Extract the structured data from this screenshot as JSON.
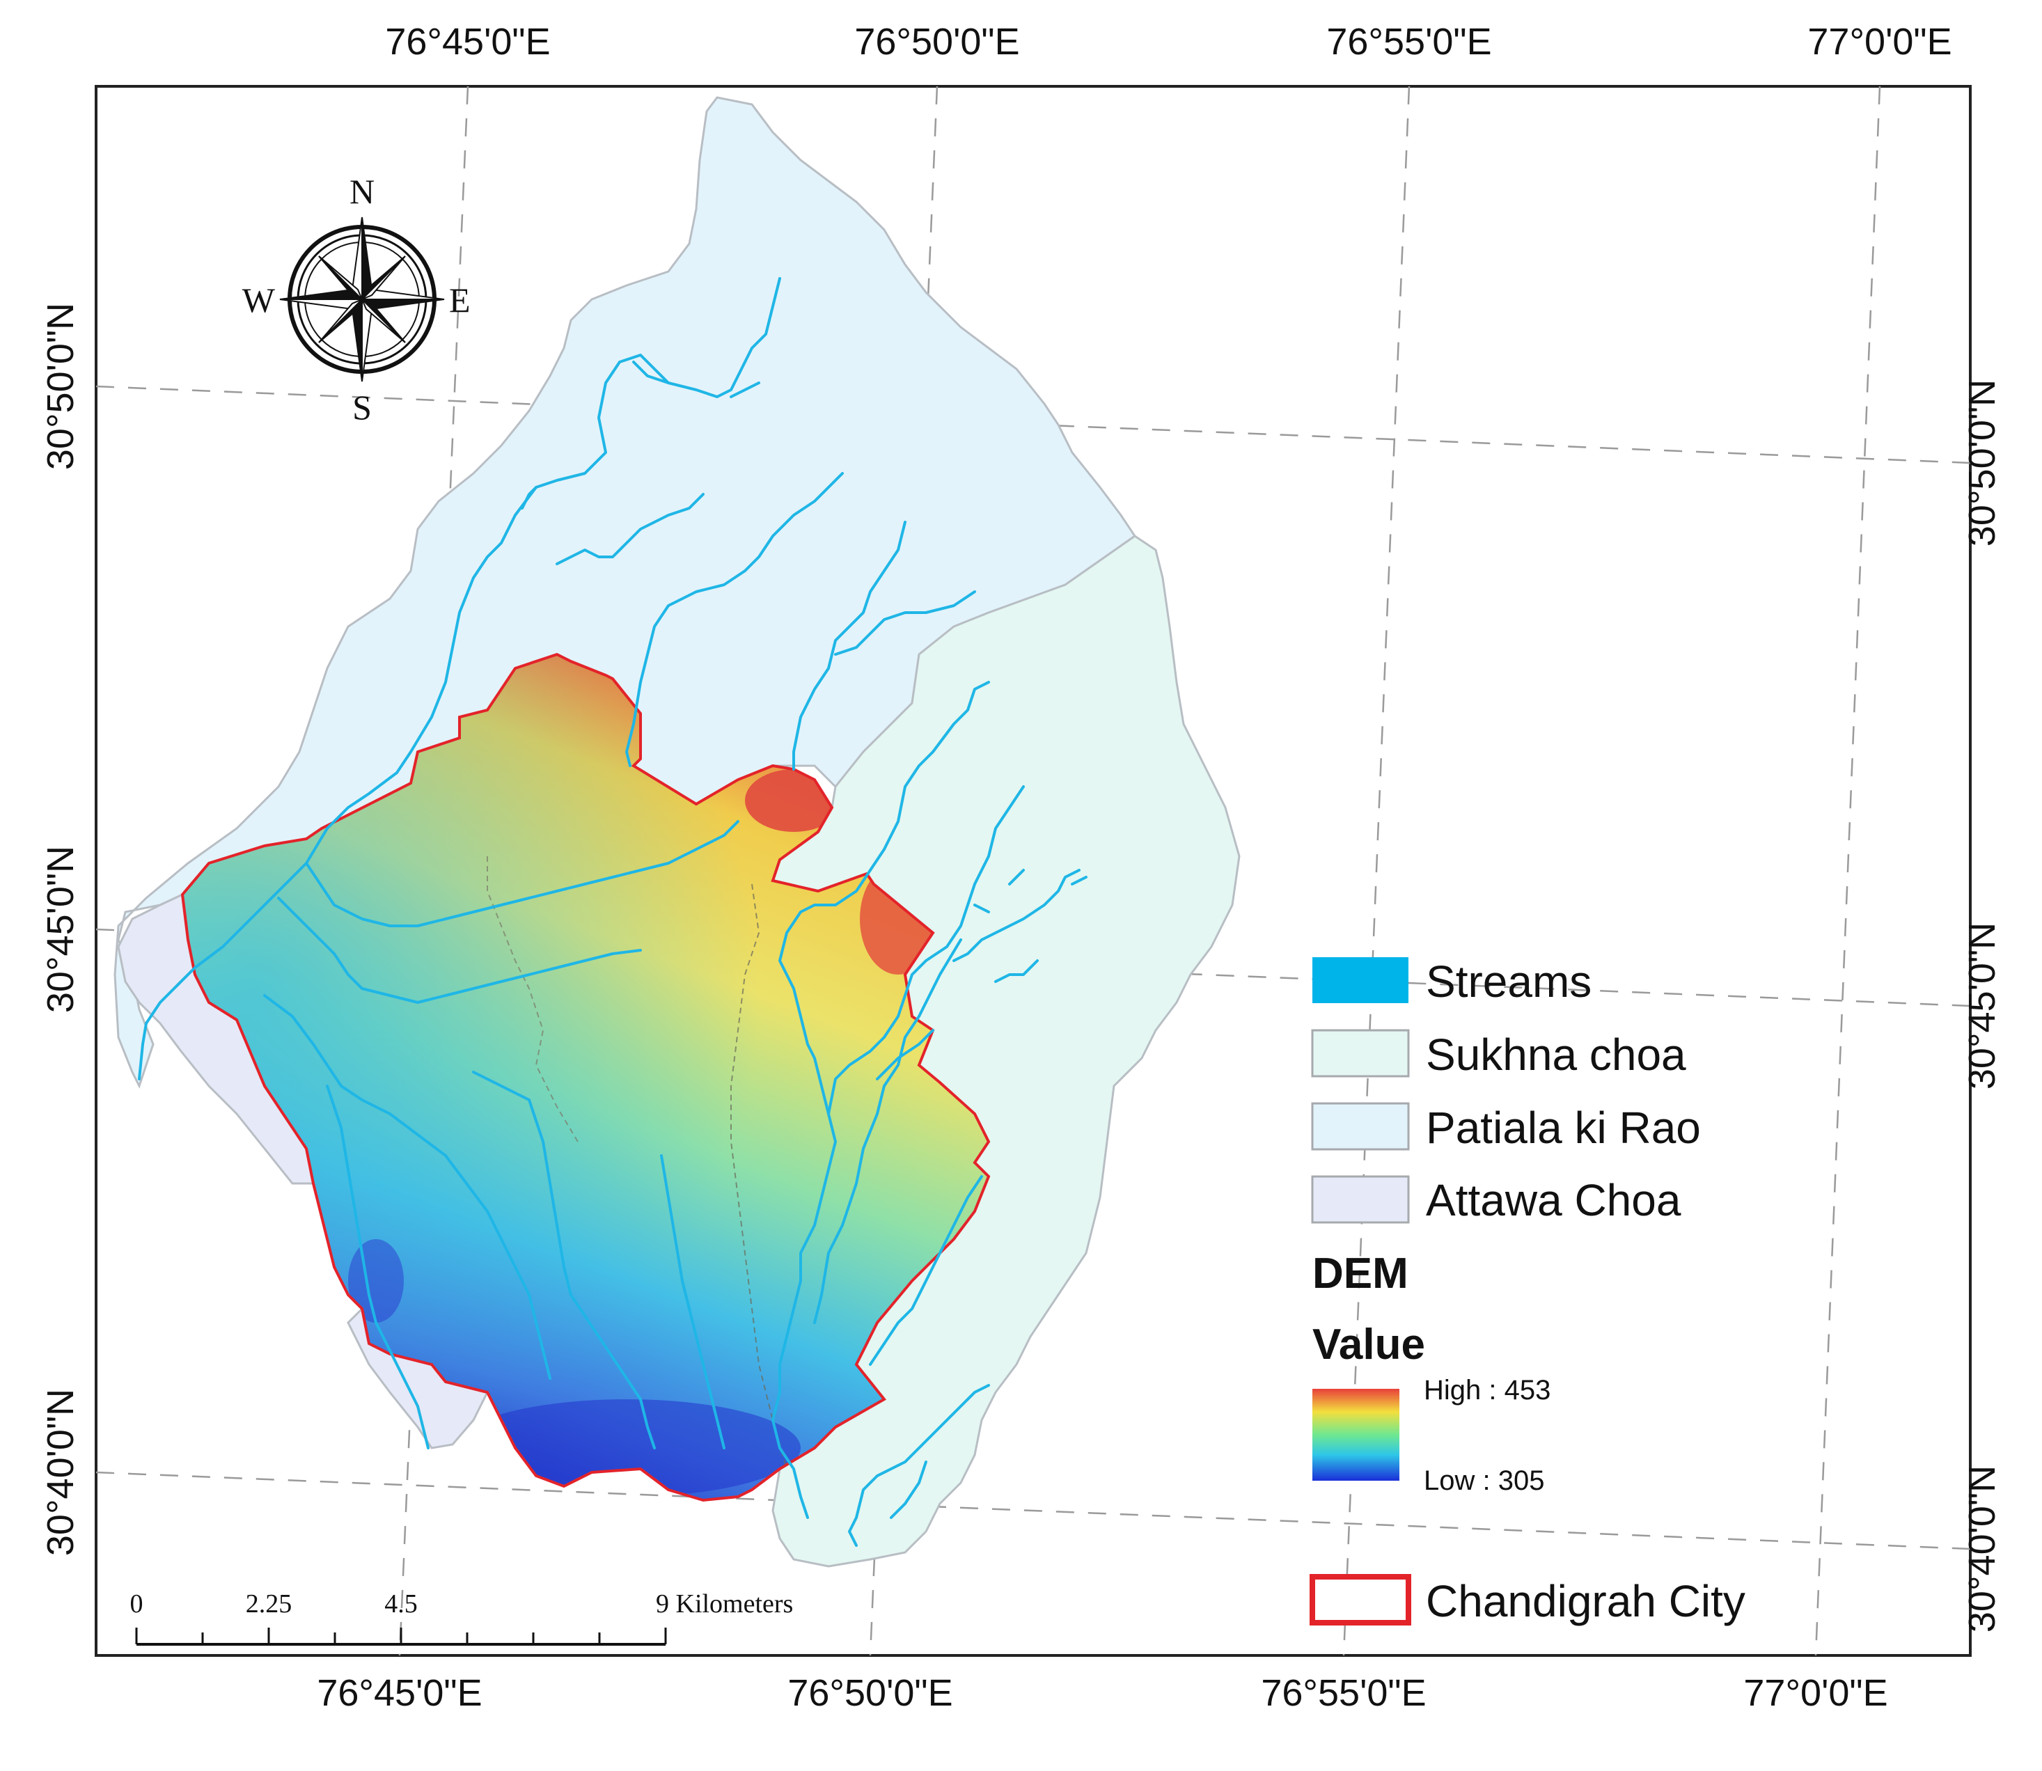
{
  "map": {
    "axes": {
      "top": [
        "76°45'0\"E",
        "76°50'0\"E",
        "76°55'0\"E",
        "77°0'0\"E"
      ],
      "bottom": [
        "76°45'0\"E",
        "76°50'0\"E",
        "76°55'0\"E",
        "77°0'0\"E"
      ],
      "left": [
        "30°50'0\"N",
        "30°45'0\"N",
        "30°40'0\"N"
      ],
      "right": [
        "30°50'0\"N",
        "30°45'0\"N",
        "30°40'0\"N"
      ]
    },
    "compass": {
      "n": "N",
      "s": "S",
      "e": "E",
      "w": "W"
    },
    "scale_bar": {
      "labels": [
        "0",
        "2.25",
        "4.5",
        "9 Kilometers"
      ]
    },
    "legend": {
      "items": [
        {
          "label": "Streams",
          "color": "#00b4ea"
        },
        {
          "label": "Sukhna choa",
          "color": "#e4f7f2"
        },
        {
          "label": "Patiala ki Rao",
          "color": "#e3f3fb"
        },
        {
          "label": "Attawa Choa",
          "color": "#e6e9f7"
        }
      ],
      "dem_title": "DEM",
      "value_title": "Value",
      "high_label": "High : 453",
      "low_label": "Low : 305",
      "city_label": "Chandigrah City",
      "city_color": "#e3232a"
    }
  }
}
